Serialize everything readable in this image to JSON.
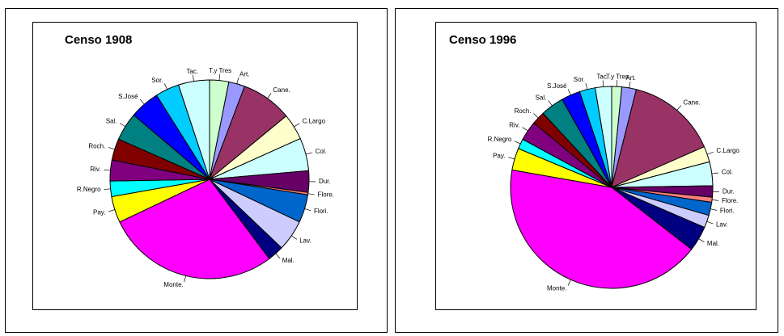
{
  "chart_data": [
    {
      "type": "pie",
      "title": "Censo 1908",
      "categories": [
        "T.y Tres",
        "Art.",
        "Cane.",
        "C.Largo",
        "Col.",
        "Dur.",
        "Flore.",
        "Flori.",
        "Lav.",
        "Mal.",
        "Monte.",
        "Pay.",
        "R.Negro",
        "Riv.",
        "Roch.",
        "Sal.",
        "S.José",
        "Sor.",
        "Tac."
      ],
      "values": [
        3.2,
        2.7,
        8.5,
        4.4,
        5.5,
        3.6,
        0.4,
        4.7,
        5.2,
        2.7,
        29,
        4.4,
        2.6,
        3.5,
        3.6,
        4.7,
        5.0,
        4.0,
        5.2
      ],
      "colors": [
        "#ccffcc",
        "#9999ff",
        "#993366",
        "#ffffcc",
        "#ccffff",
        "#660066",
        "#ff8080",
        "#0066cc",
        "#ccccff",
        "#000080",
        "#ff00ff",
        "#ffff00",
        "#00ffff",
        "#800080",
        "#800000",
        "#008080",
        "#0000ff",
        "#00ccff",
        "#ccffff"
      ]
    },
    {
      "type": "pie",
      "title": "Censo 1996",
      "categories": [
        "T.y Tres",
        "Art.",
        "Cane.",
        "C.Largo",
        "Col.",
        "Dur.",
        "Flore.",
        "Flori.",
        "Lav.",
        "Mal.",
        "Monte.",
        "Pay.",
        "R.Negro",
        "Riv.",
        "Roch.",
        "Sal.",
        "S.José",
        "Sor.",
        "Tac."
      ],
      "values": [
        1.6,
        2.3,
        14.4,
        2.5,
        3.8,
        1.8,
        0.8,
        2.1,
        2.0,
        4.0,
        42,
        3.5,
        1.6,
        3.1,
        2.1,
        3.7,
        3.0,
        2.5,
        2.6
      ],
      "colors": [
        "#ccffcc",
        "#9999ff",
        "#993366",
        "#ffffcc",
        "#ccffff",
        "#660066",
        "#ff8080",
        "#0066cc",
        "#ccccff",
        "#000080",
        "#ff00ff",
        "#ffff00",
        "#00ffff",
        "#800080",
        "#800000",
        "#008080",
        "#0000ff",
        "#00ccff",
        "#ccffff"
      ]
    }
  ]
}
